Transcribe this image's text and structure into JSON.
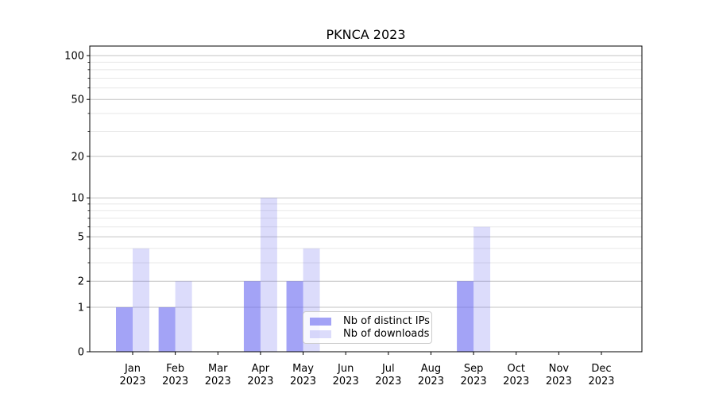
{
  "chart_data": {
    "type": "bar",
    "title": "PKNCA 2023",
    "categories": [
      "Jan",
      "Feb",
      "Mar",
      "Apr",
      "May",
      "Jun",
      "Jul",
      "Aug",
      "Sep",
      "Oct",
      "Nov",
      "Dec"
    ],
    "year": "2023",
    "series": [
      {
        "name": "Nb of distinct IPs",
        "color": "#6b6bf0",
        "opacity": 0.62,
        "values": [
          1,
          1,
          0,
          2,
          2,
          0,
          0,
          0,
          2,
          0,
          0,
          0
        ]
      },
      {
        "name": "Nb of downloads",
        "color": "#6b6bf0",
        "opacity": 0.24,
        "values": [
          4,
          2,
          0,
          10,
          4,
          0,
          0,
          0,
          6,
          0,
          0,
          0
        ]
      }
    ],
    "y_ticks": [
      0,
      1,
      2,
      5,
      10,
      20,
      50,
      100
    ],
    "y_minor_ticks": [
      3,
      4,
      6,
      7,
      8,
      9,
      30,
      40,
      60,
      70,
      80,
      90
    ],
    "y_scale": "log10(v+1)",
    "ylim": [
      0,
      100
    ],
    "grid": "on",
    "legend_position": "lower center",
    "colors": {
      "axis": "#000000",
      "grid_major": "#c3c3c3",
      "grid_minor": "#e8e8e8",
      "legend_border": "#cccccc"
    }
  }
}
